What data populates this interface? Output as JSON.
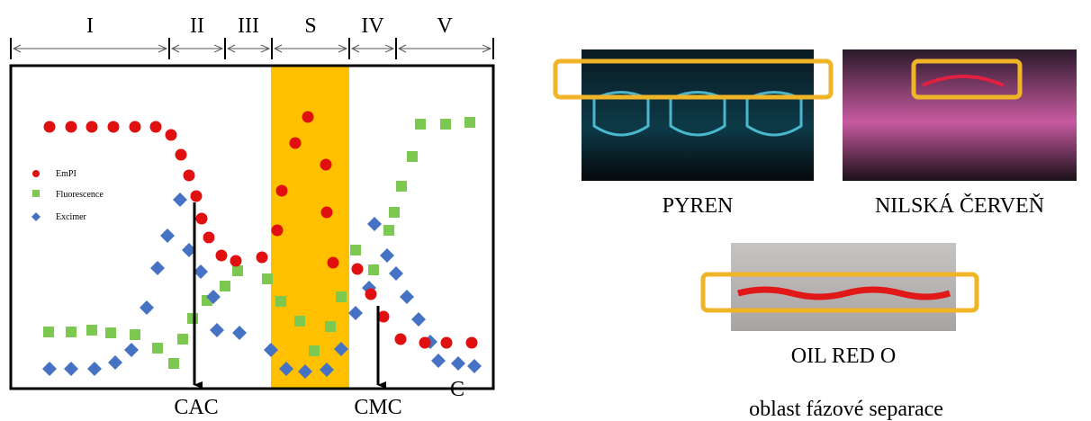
{
  "regions": [
    "I",
    "II",
    "III",
    "S",
    "IV",
    "V"
  ],
  "legend": [
    "EmPI",
    "Fluorescence",
    "Excimer"
  ],
  "markers": {
    "cac": "CAC",
    "cmc": "CMC",
    "axis": "C"
  },
  "photos": {
    "pyrene": "PYREN",
    "nile_red": "NILSKÁ ČERVEŇ",
    "oil_red": "OIL RED O"
  },
  "caption": "oblast fázové separace"
}
